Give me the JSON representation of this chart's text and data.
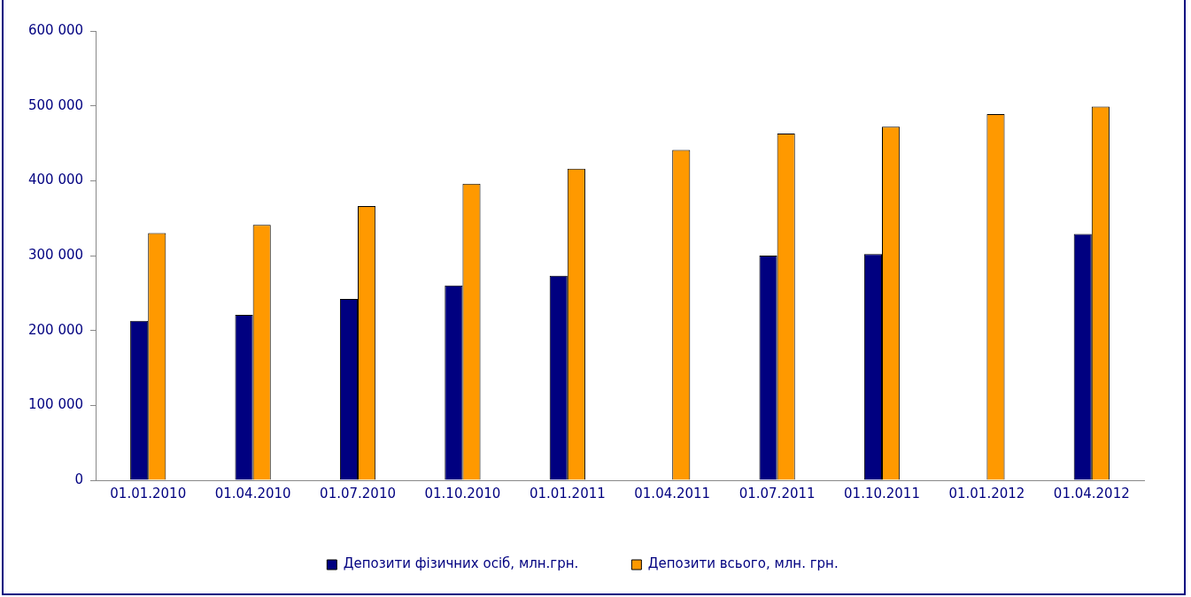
{
  "chart_data": {
    "type": "bar",
    "categories": [
      "01.01.2010",
      "01.04.2010",
      "01.07.2010",
      "01.10.2010",
      "01.01.2011",
      "01.04.2011",
      "01.07.2011",
      "01.10.2011",
      "01.01.2012",
      "01.04.2012"
    ],
    "series": [
      {
        "name": "Депозити фізичних осіб, млн.грн.",
        "color": "#000080",
        "values": [
          213000,
          221000,
          242000,
          260000,
          273000,
          null,
          300000,
          302000,
          null,
          329000
        ]
      },
      {
        "name": "Депозити всього, млн. грн.",
        "color": "#ff9900",
        "values": [
          330000,
          341000,
          366000,
          396000,
          416000,
          441000,
          463000,
          472000,
          489000,
          499000
        ]
      }
    ],
    "ylim": [
      0,
      600000
    ],
    "yticks": [
      {
        "value": 0,
        "label": "0"
      },
      {
        "value": 100000,
        "label": "100 000"
      },
      {
        "value": 200000,
        "label": "200 000"
      },
      {
        "value": 300000,
        "label": "300 000"
      },
      {
        "value": 400000,
        "label": "400 000"
      },
      {
        "value": 500000,
        "label": "500 000"
      },
      {
        "value": 600000,
        "label": "600 000"
      }
    ],
    "grid": false,
    "legend": "bottom"
  }
}
